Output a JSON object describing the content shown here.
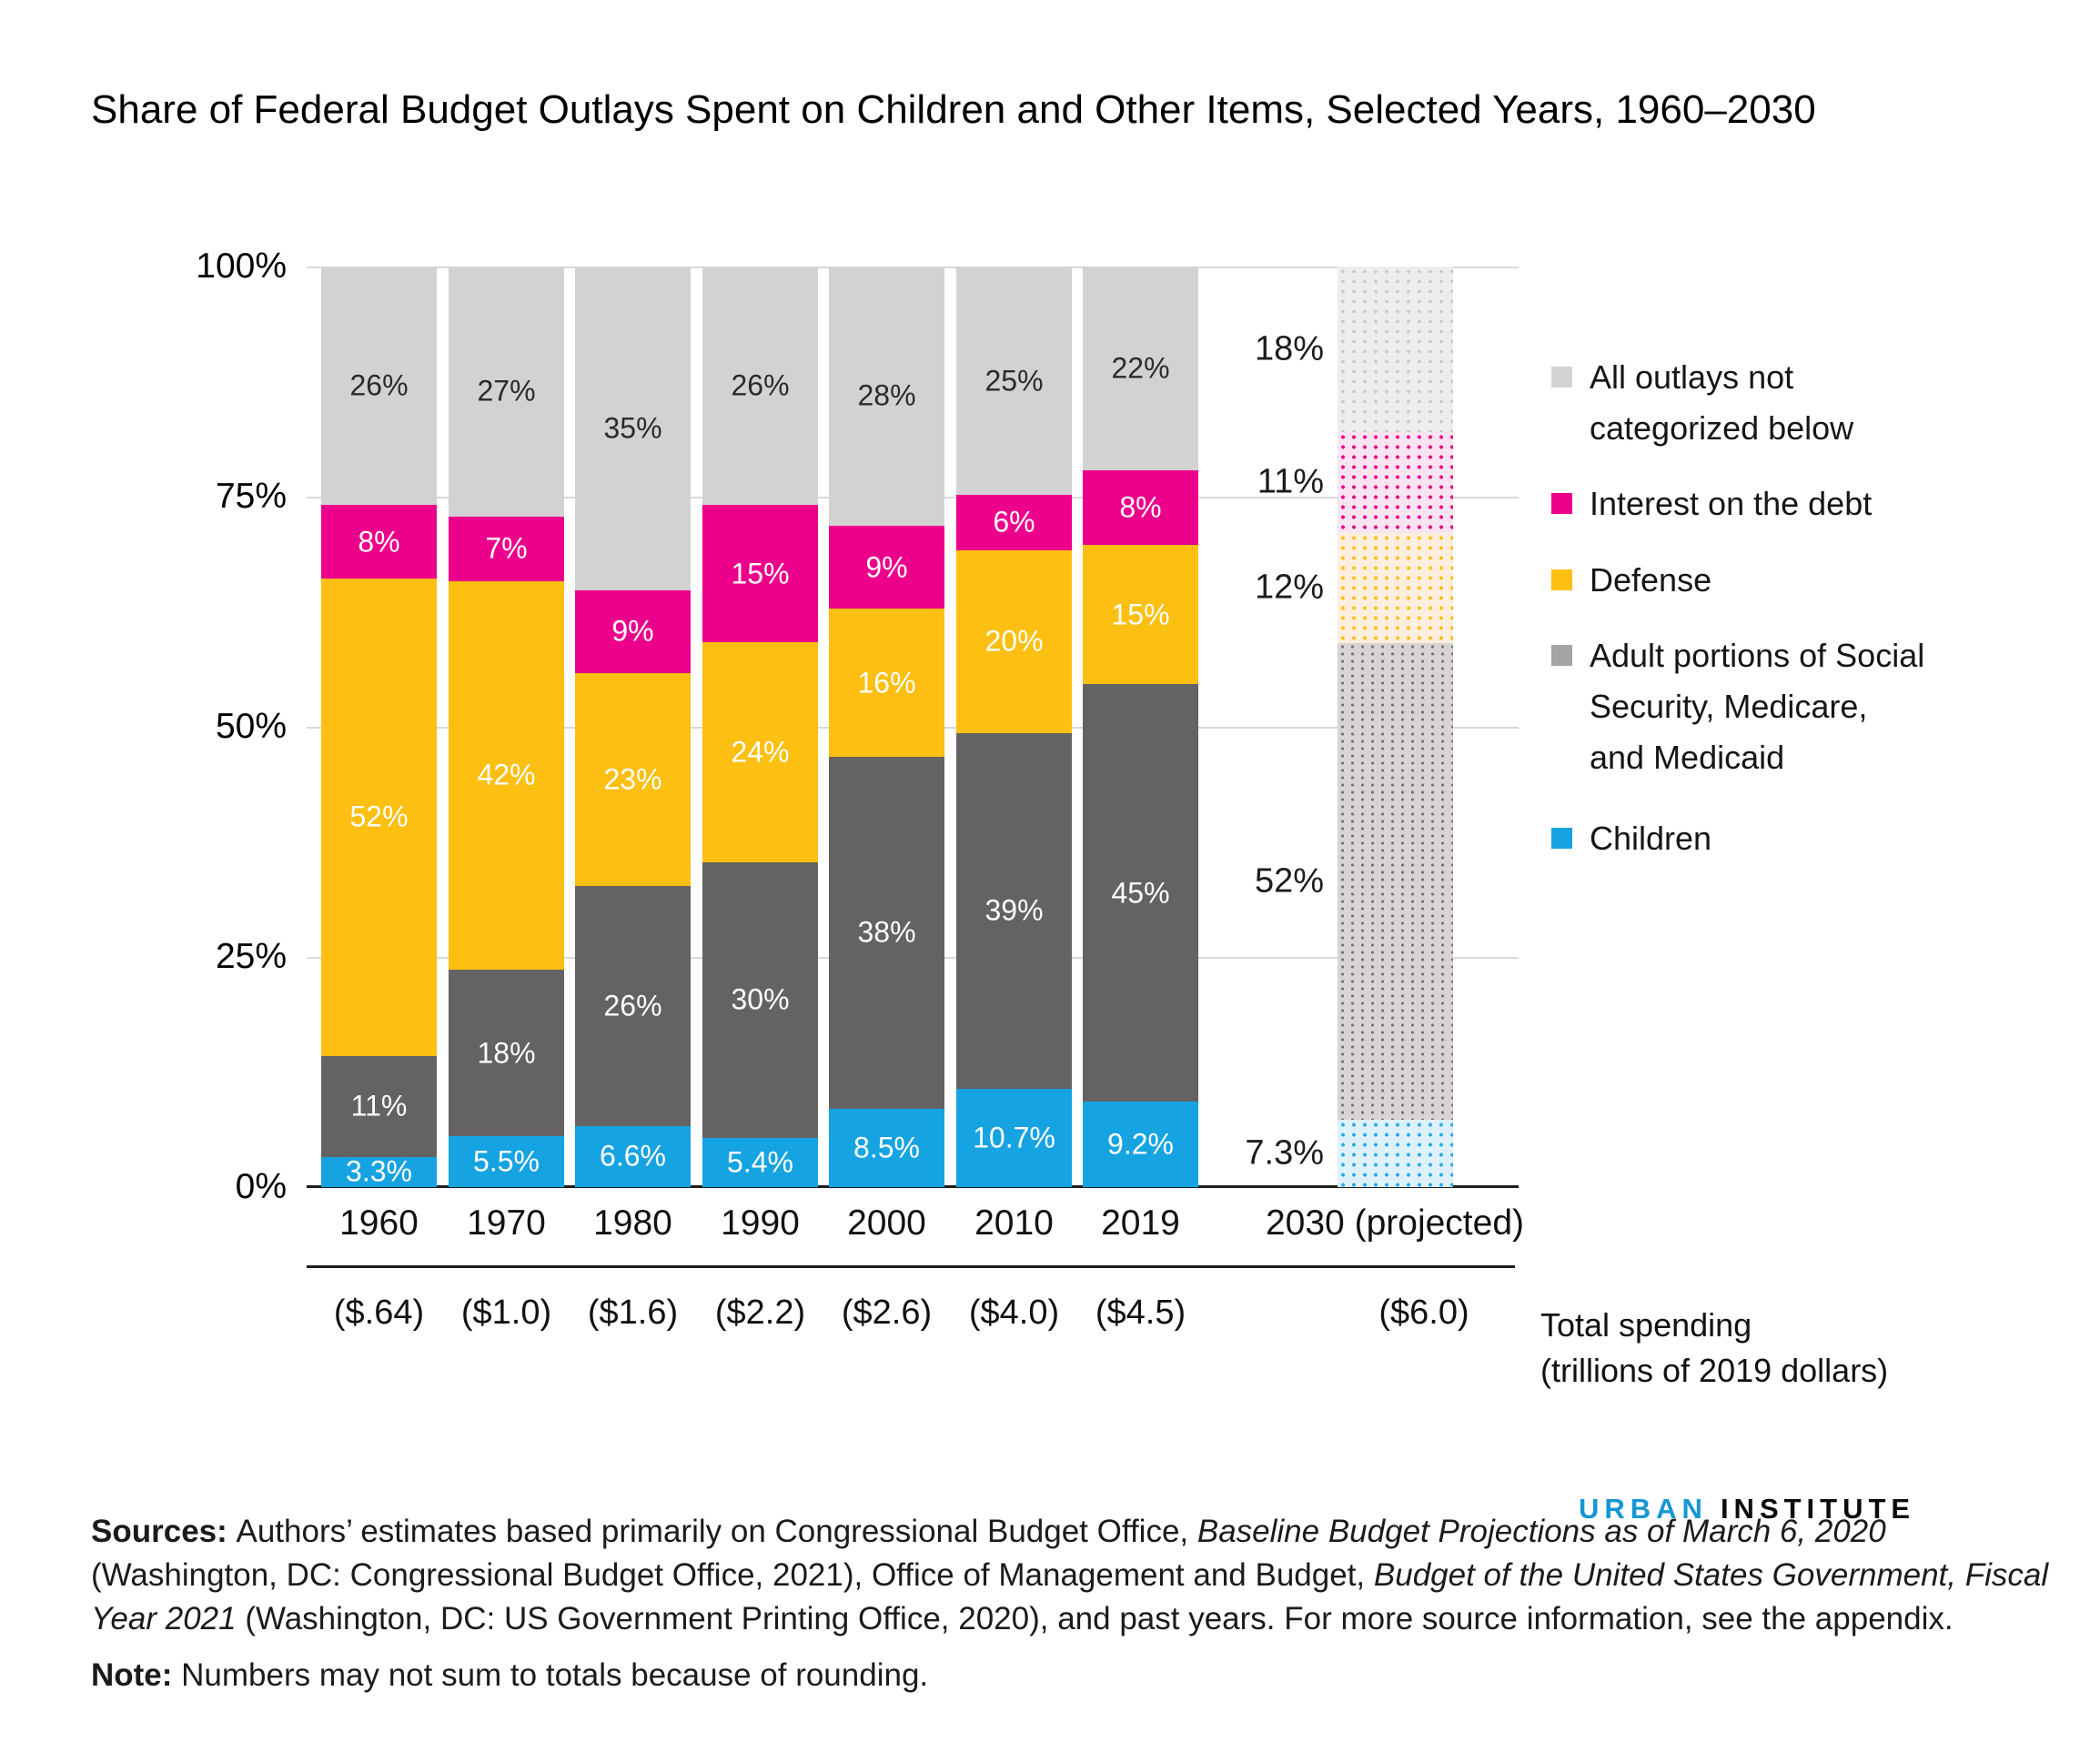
{
  "title": "Share of Federal Budget Outlays Spent on Children and Other Items, Selected Years, 1960–2030",
  "y_axis": {
    "tick_labels": [
      "100%",
      "75%",
      "50%",
      "25%",
      "0%"
    ]
  },
  "x_axis": {
    "categories": [
      "1960",
      "1970",
      "1980",
      "1990",
      "2000",
      "2010",
      "2019",
      "2030 (projected)"
    ]
  },
  "total_spending_row": {
    "values": [
      "($.64)",
      "($1.0)",
      "($1.6)",
      "($2.2)",
      "($2.6)",
      "($4.0)",
      "($4.5)",
      "($6.0)"
    ],
    "caption_line1": "Total spending",
    "caption_line2": "(trillions of 2019 dollars)"
  },
  "chart_data": {
    "type": "bar",
    "stacked": true,
    "units": "percent of total federal outlays",
    "ylim": [
      0,
      100
    ],
    "grid": true,
    "legend_position": "right",
    "categories": [
      "1960",
      "1970",
      "1980",
      "1990",
      "2000",
      "2010",
      "2019",
      "2030 (projected)"
    ],
    "projected_category_index": 7,
    "series": [
      {
        "name": "Children",
        "color": "#16a3e2",
        "values": [
          3.3,
          5.5,
          6.6,
          5.4,
          8.5,
          10.7,
          9.2,
          7.3
        ],
        "labels": [
          "3.3%",
          "5.5%",
          "6.6%",
          "5.4%",
          "8.5%",
          "10.7%",
          "9.2%",
          "7.3%"
        ]
      },
      {
        "name": "Adult portions of Social Security, Medicare, and Medicaid",
        "color": "#656263",
        "values": [
          11,
          18,
          26,
          30,
          38,
          39,
          45,
          52
        ],
        "labels": [
          "11%",
          "18%",
          "26%",
          "30%",
          "38%",
          "39%",
          "45%",
          "52%"
        ]
      },
      {
        "name": "Defense",
        "color": "#fdbf11",
        "values": [
          52,
          42,
          23,
          24,
          16,
          20,
          15,
          12
        ],
        "labels": [
          "52%",
          "42%",
          "23%",
          "24%",
          "16%",
          "20%",
          "15%",
          "12%"
        ]
      },
      {
        "name": "Interest on the debt",
        "color": "#ec008b",
        "values": [
          8,
          7,
          9,
          15,
          9,
          6,
          8,
          11
        ],
        "labels": [
          "8%",
          "7%",
          "9%",
          "15%",
          "9%",
          "6%",
          "8%",
          "11%"
        ]
      },
      {
        "name": "All outlays not categorized below",
        "color": "#d2d2d2",
        "values": [
          26,
          27,
          35,
          26,
          28,
          25,
          22,
          18
        ],
        "labels": [
          "26%",
          "27%",
          "35%",
          "26%",
          "28%",
          "25%",
          "22%",
          "18%"
        ]
      }
    ]
  },
  "legend": {
    "items": [
      {
        "label_lines": [
          "All outlays not",
          "categorized below"
        ],
        "color": "#d2d2d2"
      },
      {
        "label_lines": [
          "Interest on the debt"
        ],
        "color": "#ec008b"
      },
      {
        "label_lines": [
          "Defense"
        ],
        "color": "#fdbf11"
      },
      {
        "label_lines": [
          "Adult portions of Social",
          "Security, Medicare,",
          "and Medicaid"
        ],
        "color": "#a5a3a4"
      },
      {
        "label_lines": [
          "Children"
        ],
        "color": "#16a3e2"
      }
    ]
  },
  "branding": {
    "word1": "URBAN",
    "word2": "INSTITUTE",
    "accent_color": "#1696d2"
  },
  "sources": {
    "lines": [
      [
        {
          "t": "Sources: ",
          "b": 1
        },
        {
          "t": "Authors’ estimates based primarily on Congressional Budget Office, "
        },
        {
          "t": "Baseline Budget Projections as of March 6, 2020",
          "i": 1
        }
      ],
      [
        {
          "t": "(Washington, DC: Congressional Budget Office, 2021), Office of Management and Budget, "
        },
        {
          "t": "Budget of the United States Government, Fiscal",
          "i": 1
        }
      ],
      [
        {
          "t": "Year 2021",
          "i": 1
        },
        {
          "t": " (Washington, DC: US Government Printing Office, 2020), and past years. For more source information, see the appendix."
        }
      ]
    ]
  },
  "note": [
    {
      "t": "Note: ",
      "b": 1
    },
    {
      "t": "Numbers may not sum to totals because of rounding."
    }
  ]
}
